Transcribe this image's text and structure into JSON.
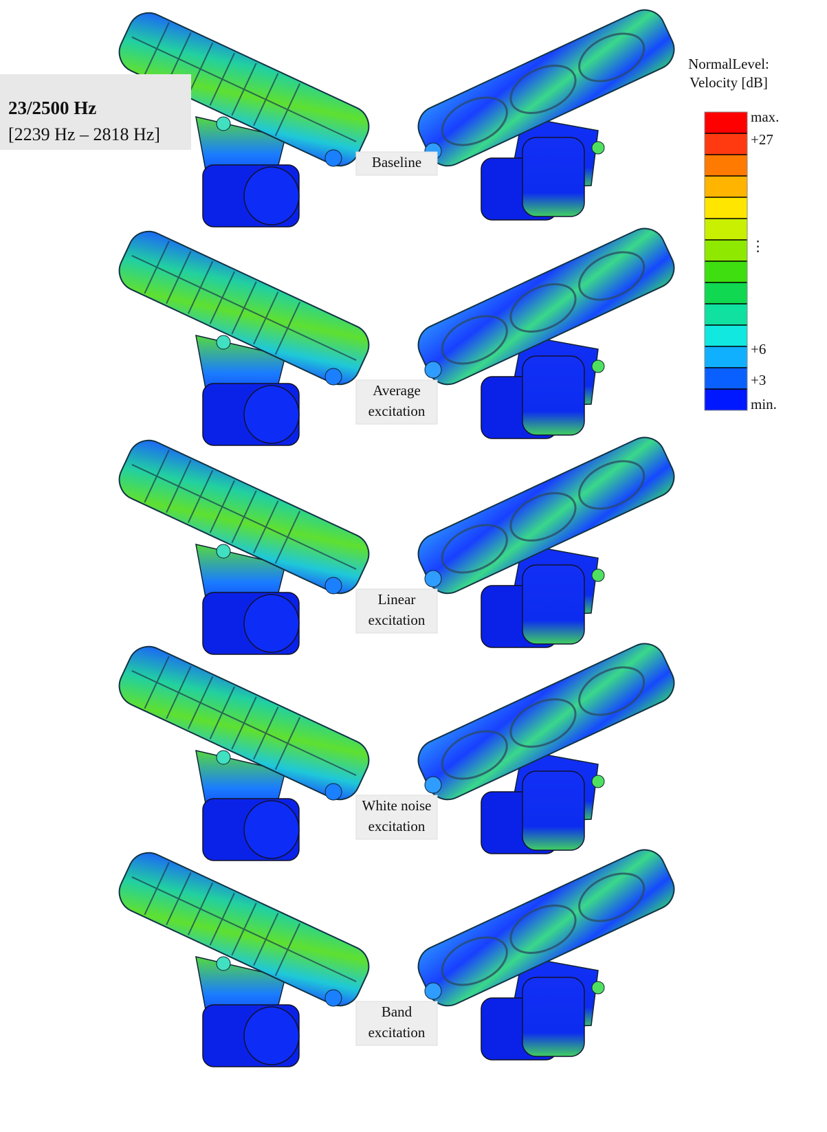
{
  "frequency_box": {
    "title": "23/2500 Hz",
    "range": "[2239 Hz – 2818 Hz]"
  },
  "legend": {
    "title_lines": [
      "NormalLevel:",
      "Velocity [dB]"
    ],
    "labels": [
      "max.",
      "+27",
      "⋮",
      "+6",
      "+3",
      "min."
    ]
  },
  "rows": [
    {
      "label_lines": [
        "Baseline"
      ]
    },
    {
      "label_lines": [
        "Average",
        "excitation"
      ]
    },
    {
      "label_lines": [
        "Linear",
        "excitation"
      ]
    },
    {
      "label_lines": [
        "White noise",
        "excitation"
      ]
    },
    {
      "label_lines": [
        "Band",
        "excitation"
      ]
    }
  ]
}
